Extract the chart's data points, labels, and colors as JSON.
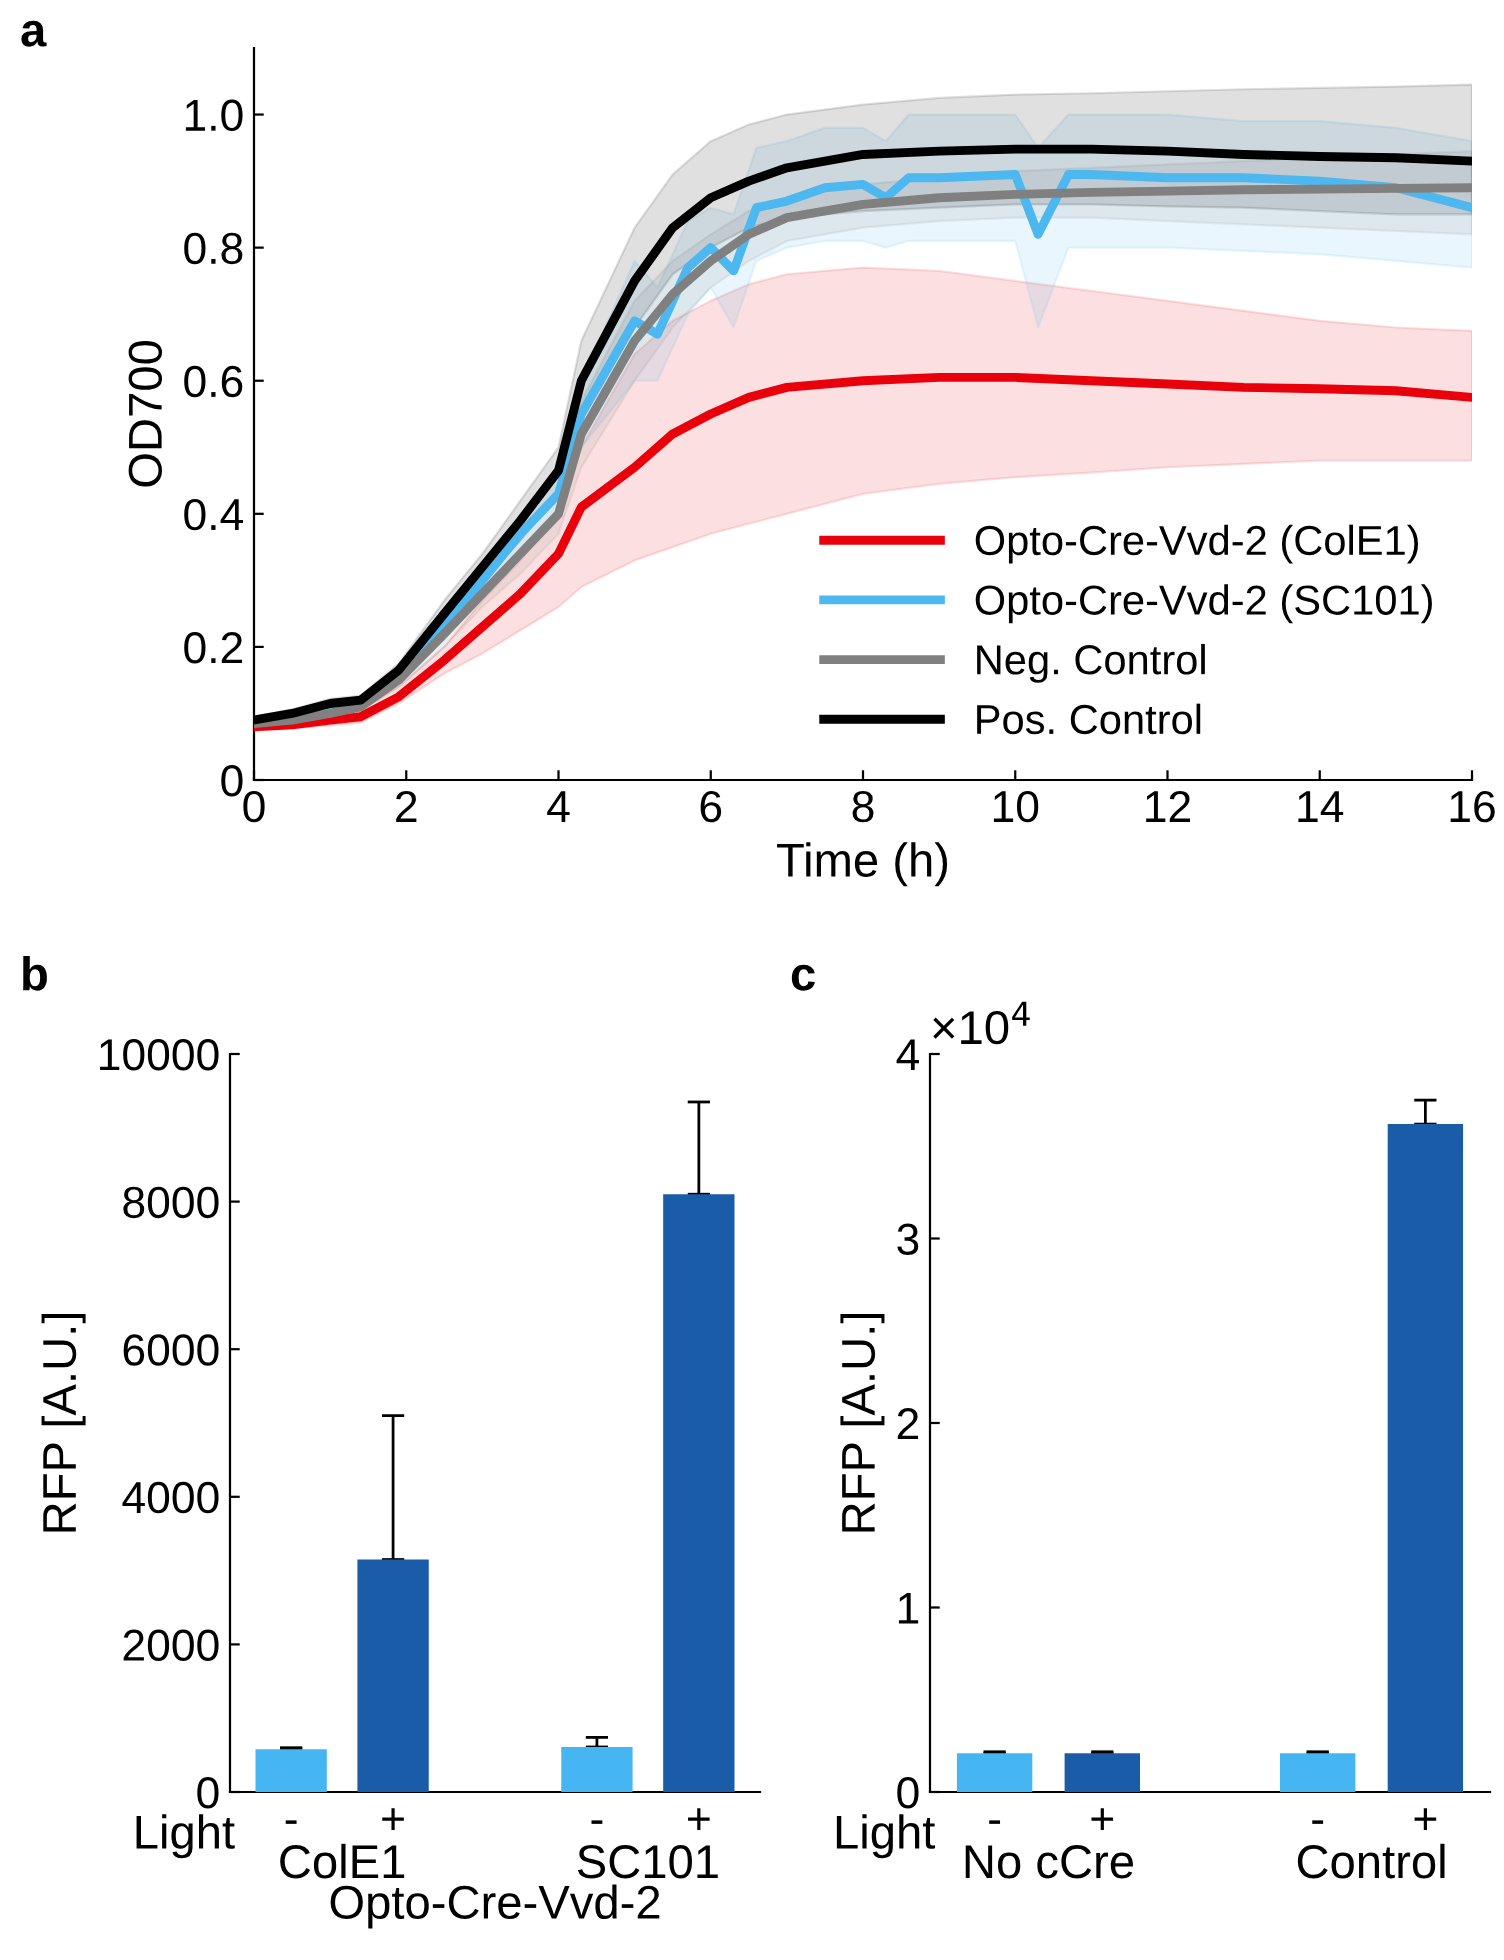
{
  "chart_data": [
    {
      "type": "line",
      "title": "a",
      "xlabel": "Time (h)",
      "ylabel": "OD700",
      "xlim": [
        0,
        16
      ],
      "xticks": [
        0,
        2,
        4,
        6,
        8,
        10,
        12,
        14,
        16
      ],
      "ylim": [
        0,
        1.1
      ],
      "yticks": [
        0,
        0.2,
        0.4,
        0.6,
        0.8,
        {
          "value": 1.0,
          "label": "1.0"
        }
      ],
      "grid": false,
      "legend": "bottom right",
      "marker": "none",
      "line_style": "solid",
      "series": [
        {
          "name": "Opto-Cre-Vvd-2 (ColE1)",
          "color": "#e8000b",
          "x": [
            0,
            0.5,
            1,
            1.4,
            1.9,
            2.5,
            3,
            3.5,
            4,
            4.3,
            5,
            5.5,
            6,
            6.5,
            7,
            8,
            9,
            10,
            11,
            12,
            13,
            14,
            15,
            16
          ],
          "values": [
            0.08,
            0.083,
            0.09,
            0.095,
            0.125,
            0.18,
            0.23,
            0.28,
            0.34,
            0.41,
            0.47,
            0.52,
            0.55,
            0.575,
            0.59,
            0.6,
            0.605,
            0.605,
            0.6,
            0.595,
            0.59,
            0.588,
            0.585,
            0.575
          ],
          "lower": [
            0.075,
            0.077,
            0.082,
            0.086,
            0.115,
            0.16,
            0.19,
            0.225,
            0.26,
            0.29,
            0.33,
            0.35,
            0.37,
            0.385,
            0.4,
            0.43,
            0.445,
            0.455,
            0.462,
            0.47,
            0.475,
            0.48,
            0.48,
            0.48
          ],
          "upper": [
            0.09,
            0.092,
            0.1,
            0.105,
            0.14,
            0.2,
            0.27,
            0.33,
            0.4,
            0.5,
            0.64,
            0.69,
            0.72,
            0.745,
            0.76,
            0.77,
            0.765,
            0.75,
            0.735,
            0.72,
            0.705,
            0.69,
            0.68,
            0.675
          ]
        },
        {
          "name": "Opto-Cre-Vvd-2 (SC101)",
          "color": "#4db8f0",
          "x": [
            1,
            1.4,
            1.9,
            2.5,
            3,
            3.5,
            4,
            4.3,
            5,
            5.3,
            5.7,
            6,
            6.3,
            6.6,
            7,
            7.5,
            8,
            8.3,
            8.6,
            9,
            10,
            10.3,
            10.7,
            11,
            12,
            13,
            14,
            15,
            16
          ],
          "values": [
            0.105,
            0.115,
            0.155,
            0.23,
            0.3,
            0.37,
            0.43,
            0.55,
            0.69,
            0.67,
            0.77,
            0.8,
            0.765,
            0.86,
            0.87,
            0.89,
            0.895,
            0.875,
            0.905,
            0.905,
            0.91,
            0.82,
            0.91,
            0.91,
            0.905,
            0.905,
            0.9,
            0.89,
            0.86
          ],
          "lower": [
            0.1,
            0.11,
            0.145,
            0.21,
            0.28,
            0.345,
            0.4,
            0.5,
            0.6,
            0.6,
            0.7,
            0.74,
            0.68,
            0.78,
            0.8,
            0.81,
            0.81,
            0.8,
            0.81,
            0.81,
            0.81,
            0.68,
            0.8,
            0.8,
            0.8,
            0.795,
            0.79,
            0.78,
            0.77
          ],
          "upper": [
            0.11,
            0.12,
            0.165,
            0.25,
            0.32,
            0.395,
            0.46,
            0.6,
            0.78,
            0.74,
            0.84,
            0.86,
            0.85,
            0.95,
            0.96,
            0.98,
            0.98,
            0.96,
            1.0,
            1.0,
            1.0,
            0.95,
            1.0,
            1.0,
            1.0,
            0.99,
            0.99,
            0.98,
            0.96
          ]
        },
        {
          "name": "Neg. Control",
          "color": "#808080",
          "x": [
            0,
            0.5,
            1,
            1.4,
            1.9,
            2.5,
            3,
            3.5,
            4,
            4.3,
            5,
            5.5,
            6,
            6.5,
            7,
            8,
            9,
            10,
            11,
            12,
            13,
            14,
            15,
            16
          ],
          "values": [
            0.085,
            0.09,
            0.1,
            0.11,
            0.15,
            0.22,
            0.28,
            0.34,
            0.4,
            0.52,
            0.66,
            0.73,
            0.78,
            0.82,
            0.845,
            0.865,
            0.875,
            0.88,
            0.883,
            0.885,
            0.887,
            0.888,
            0.889,
            0.89
          ],
          "lower": [
            0.08,
            0.085,
            0.095,
            0.104,
            0.14,
            0.2,
            0.26,
            0.31,
            0.37,
            0.47,
            0.6,
            0.68,
            0.74,
            0.78,
            0.81,
            0.83,
            0.84,
            0.845,
            0.845,
            0.84,
            0.835,
            0.83,
            0.825,
            0.82
          ],
          "upper": [
            0.09,
            0.095,
            0.105,
            0.116,
            0.16,
            0.24,
            0.3,
            0.37,
            0.43,
            0.57,
            0.72,
            0.78,
            0.82,
            0.855,
            0.875,
            0.895,
            0.905,
            0.915,
            0.92,
            0.925,
            0.93,
            0.935,
            0.94,
            0.945
          ]
        },
        {
          "name": "Pos. Control",
          "color": "#000000",
          "x": [
            0,
            0.5,
            1,
            1.4,
            1.9,
            2.5,
            3,
            3.5,
            4,
            4.3,
            5,
            5.5,
            6,
            6.5,
            7,
            8,
            9,
            10,
            11,
            12,
            13,
            14,
            15,
            16
          ],
          "values": [
            0.09,
            0.1,
            0.115,
            0.12,
            0.165,
            0.25,
            0.32,
            0.39,
            0.465,
            0.6,
            0.75,
            0.83,
            0.875,
            0.9,
            0.92,
            0.94,
            0.945,
            0.948,
            0.948,
            0.945,
            0.94,
            0.937,
            0.935,
            0.93
          ],
          "lower": [
            0.085,
            0.094,
            0.108,
            0.113,
            0.155,
            0.23,
            0.3,
            0.36,
            0.43,
            0.54,
            0.68,
            0.76,
            0.8,
            0.83,
            0.845,
            0.855,
            0.86,
            0.865,
            0.865,
            0.862,
            0.86,
            0.855,
            0.85,
            0.85
          ],
          "upper": [
            0.095,
            0.106,
            0.122,
            0.127,
            0.175,
            0.27,
            0.34,
            0.42,
            0.5,
            0.66,
            0.83,
            0.91,
            0.96,
            0.985,
            1.0,
            1.015,
            1.025,
            1.03,
            1.032,
            1.035,
            1.038,
            1.04,
            1.042,
            1.045
          ]
        }
      ]
    },
    {
      "type": "bar",
      "title": "b",
      "ylabel": "RFP [A.U.]",
      "categories": [
        "-",
        "+",
        null,
        "-",
        "+"
      ],
      "values": [
        580,
        3150,
        null,
        610,
        8100
      ],
      "errors": [
        20,
        1950,
        null,
        130,
        1250
      ],
      "colors": [
        "#45b6f2",
        "#1a5ca8",
        null,
        "#45b6f2",
        "#1a5ca8"
      ],
      "ylim": [
        0,
        10000
      ],
      "yticks": [
        0,
        2000,
        4000,
        6000,
        8000,
        10000
      ],
      "grid": false,
      "annotations": [
        "Light",
        "ColE1",
        "SC101",
        "Opto-Cre-Vvd-2"
      ]
    },
    {
      "type": "bar",
      "title": "c",
      "ylabel": "RFP [A.U.]",
      "categories": [
        "-",
        "+",
        null,
        "-",
        "+"
      ],
      "values": [
        0.21,
        0.21,
        null,
        0.21,
        3.62
      ],
      "errors": [
        0.008,
        0.008,
        null,
        0.008,
        0.13
      ],
      "colors": [
        "#45b6f2",
        "#1a5ca8",
        null,
        "#45b6f2",
        "#1a5ca8"
      ],
      "ylim": [
        0,
        4
      ],
      "yticks": [
        0,
        1,
        2,
        3,
        4
      ],
      "grid": false,
      "annotations": [
        "×10$^{4}$",
        "Light",
        "No cCre",
        "Control"
      ]
    }
  ]
}
